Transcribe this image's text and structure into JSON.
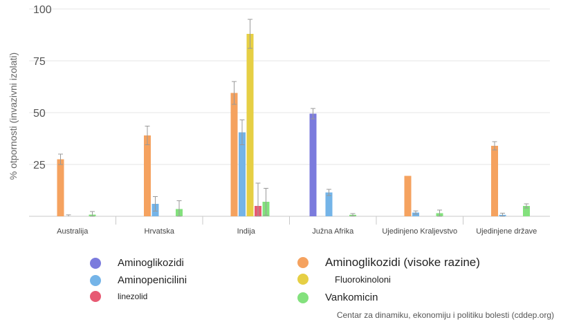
{
  "chart_data": {
    "type": "bar",
    "ylabel": "% otpornosti (invazivni izolati)",
    "ylim": [
      0,
      100
    ],
    "yticks": [
      25,
      50,
      75,
      100
    ],
    "grid": true,
    "categories": [
      "Australija",
      "Hrvatska",
      "Indija",
      "Južna Afrika",
      "Ujedinjeno Kraljevstvo",
      "Ujedinjene države"
    ],
    "series": [
      {
        "name": "Aminoglikozidi",
        "color": "#7b7bdd",
        "values": [
          null,
          null,
          null,
          49.5,
          null,
          null
        ],
        "err": [
          null,
          null,
          null,
          2.5,
          null,
          null
        ]
      },
      {
        "name": "Aminoglikozidi (visoke razine)",
        "color": "#f5a25f",
        "values": [
          27.5,
          39,
          59.5,
          null,
          19.5,
          34
        ],
        "err": [
          2.5,
          4.5,
          5.5,
          null,
          null,
          2
        ]
      },
      {
        "name": "Aminopenicilini",
        "color": "#74b4e8",
        "values": [
          null,
          6,
          40.5,
          11.5,
          1.8,
          0.7
        ],
        "err": [
          0.7,
          3.5,
          6,
          1.5,
          0.8,
          0.8
        ]
      },
      {
        "name": "Fluorokinoloni",
        "color": "#e6cf44",
        "values": [
          null,
          null,
          88,
          null,
          null,
          null
        ],
        "err": [
          null,
          null,
          7,
          null,
          null,
          null
        ]
      },
      {
        "name": "linezolid",
        "color": "#e75a73",
        "values": [
          null,
          null,
          5,
          null,
          null,
          null
        ],
        "err": [
          null,
          null,
          11,
          null,
          null,
          null
        ]
      },
      {
        "name": "Vankomicin",
        "color": "#83e17d",
        "values": [
          0.8,
          3.5,
          7,
          0.7,
          1.5,
          5
        ],
        "err": [
          1.5,
          4,
          6.5,
          0.6,
          1.5,
          1
        ]
      }
    ]
  },
  "legend": [
    {
      "name": "Aminoglikozidi",
      "color": "#7b7bdd"
    },
    {
      "name": "Aminoglikozidi (visoke razine)",
      "color": "#f5a25f"
    },
    {
      "name": "Aminopenicilini",
      "color": "#74b4e8"
    },
    {
      "name": "Fluorokinoloni",
      "color": "#e6cf44"
    },
    {
      "name": "linezolid",
      "color": "#e75a73"
    },
    {
      "name": "Vankomicin",
      "color": "#83e17d"
    }
  ],
  "source": "Centar za dinamiku, ekonomiju i politiku bolesti (cddep.org)"
}
